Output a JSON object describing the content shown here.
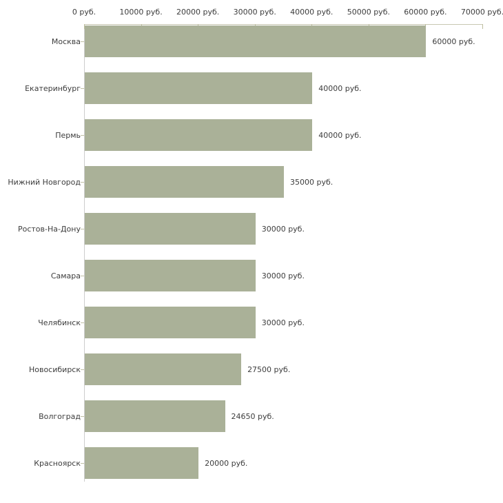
{
  "chart_data": {
    "type": "bar",
    "orientation": "horizontal",
    "title": "",
    "xlabel": "",
    "ylabel": "",
    "categories": [
      "Москва",
      "Екатеринбург",
      "Пермь",
      "Нижний Новгород",
      "Ростов-На-Дону",
      "Самара",
      "Челябинск",
      "Новосибирск",
      "Волгоград",
      "Красноярск"
    ],
    "values": [
      60000,
      40000,
      40000,
      35000,
      30000,
      30000,
      30000,
      27500,
      24650,
      20000
    ],
    "value_labels": [
      "60000 руб.",
      "40000 руб.",
      "40000 руб.",
      "35000 руб.",
      "30000 руб.",
      "30000 руб.",
      "30000 руб.",
      "27500 руб.",
      "24650 руб.",
      "20000 руб."
    ],
    "x_axis": {
      "position": "top",
      "range": [
        0,
        70000
      ],
      "tick_values": [
        0,
        10000,
        20000,
        30000,
        40000,
        50000,
        60000,
        70000
      ],
      "tick_labels": [
        "0 руб.",
        "10000 руб.",
        "20000 руб.",
        "30000 руб.",
        "40000 руб.",
        "50000 руб.",
        "60000 руб.",
        "70000 руб."
      ]
    },
    "legend": "none",
    "grid": "off",
    "colors": {
      "bar_fill": "#aab198",
      "horizontal_axis_line": "#c8c8b2",
      "vertical_axis_line": "#cccccc",
      "tick_mark": "#bcbc9c",
      "category_tick_mark": "#c0c0a4",
      "text": "#3c3c3c",
      "background": "#ffffff"
    }
  }
}
